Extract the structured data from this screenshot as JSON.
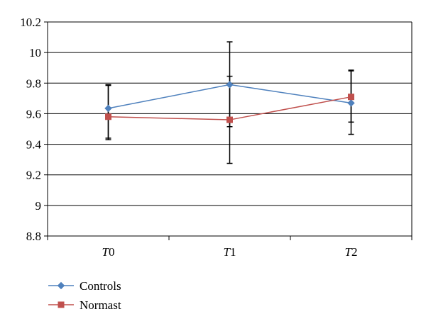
{
  "chart_data": {
    "type": "line",
    "categories": [
      "T0",
      "T1",
      "T2"
    ],
    "ylim": [
      8.8,
      10.2
    ],
    "yticks": [
      8.8,
      9,
      9.2,
      9.4,
      9.6,
      9.8,
      10,
      10.2
    ],
    "ytick_labels": [
      "8.8",
      "9",
      "9.2",
      "9.4",
      "9.6",
      "9.8",
      "10",
      "10.2"
    ],
    "grid": "horizontal",
    "legend_position": "bottom-left",
    "series": [
      {
        "name": "Controls",
        "color": "#4F81BD",
        "marker": "diamond",
        "values": [
          9.635,
          9.79,
          9.67
        ],
        "error_high": [
          9.785,
          10.07,
          9.885
        ],
        "error_low": [
          9.44,
          9.515,
          9.465
        ]
      },
      {
        "name": "Normast",
        "color": "#C0504D",
        "marker": "square",
        "values": [
          9.58,
          9.56,
          9.71
        ],
        "error_high": [
          9.79,
          9.845,
          9.88
        ],
        "error_low": [
          9.43,
          9.275,
          9.545
        ]
      }
    ]
  }
}
